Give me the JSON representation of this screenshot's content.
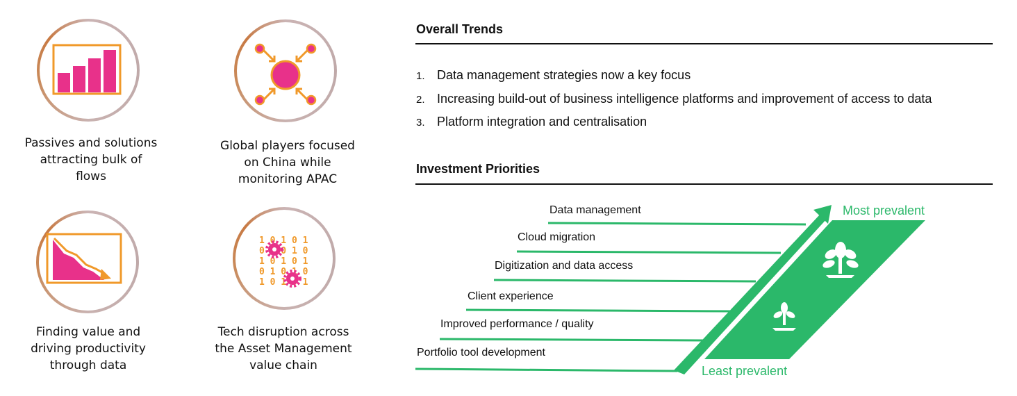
{
  "tiles": [
    {
      "caption": [
        "Passives and solutions",
        "attracting bulk of",
        "flows"
      ],
      "icon": "bar-chart-rising-icon"
    },
    {
      "caption": [
        "Global players focused",
        "on China while",
        "monitoring APAC"
      ],
      "icon": "hub-network-icon"
    },
    {
      "caption": [
        "Finding value and",
        "driving productivity",
        "through data"
      ],
      "icon": "declining-chart-icon"
    },
    {
      "caption": [
        "Tech disruption across",
        "the Asset Management",
        "value chain"
      ],
      "icon": "binary-gears-icon"
    }
  ],
  "overall_trends": {
    "title": "Overall Trends",
    "items": [
      {
        "num": "1.",
        "text": "Data management strategies now a key focus"
      },
      {
        "num": "2.",
        "text": "Increasing build-out of business intelligence platforms and improvement of access to data"
      },
      {
        "num": "3.",
        "text": "Platform integration and centralisation"
      }
    ]
  },
  "investment_priorities": {
    "title": "Investment Priorities",
    "items": [
      "Data management",
      "Cloud migration",
      "Digitization and data access",
      "Client experience",
      "Improved performance / quality",
      "Portfolio tool development"
    ],
    "most_label": "Most prevalent",
    "least_label": "Least prevalent"
  },
  "colors": {
    "pink": "#e8318a",
    "orange": "#f0992a",
    "green": "#2bb86a",
    "ring_brown": "#c87a44",
    "ring_grey": "#cbb4b4"
  }
}
